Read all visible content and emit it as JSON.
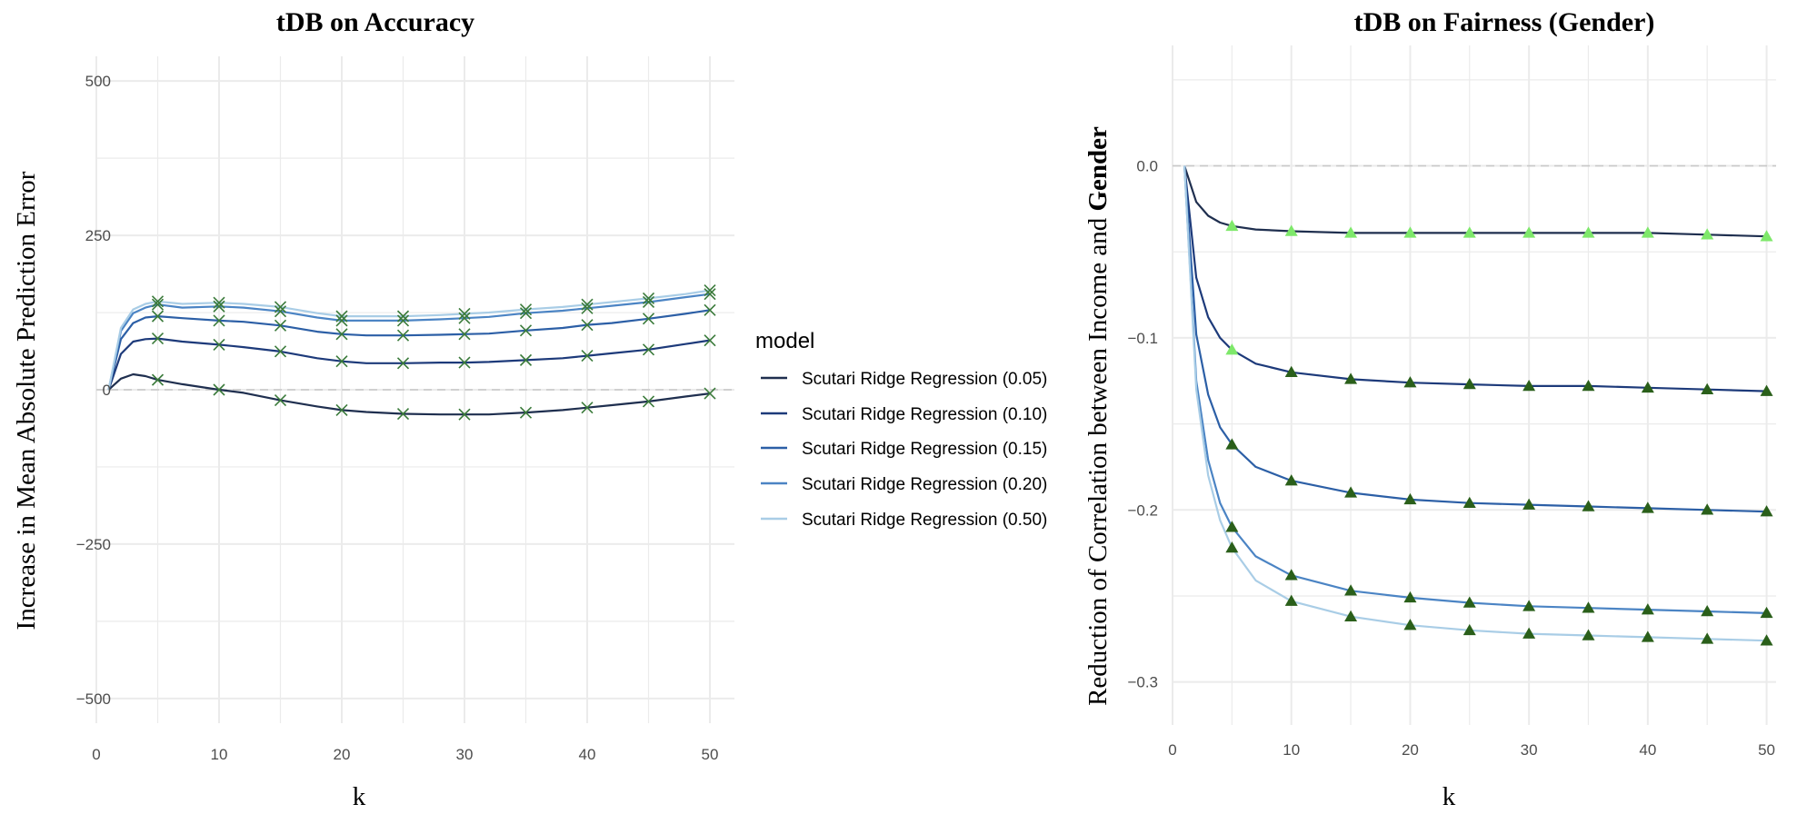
{
  "colors": {
    "series": [
      "#1f2f4f",
      "#1d3a7a",
      "#2c5fa6",
      "#4b84c4",
      "#a9cde6"
    ],
    "marker_cross": "#3a7a3a",
    "marker_triangle_dark": "#2a5f1a",
    "marker_triangle_light": "#7ee86a",
    "grid": "#ebebeb",
    "zero_line": "#c8c8c8"
  },
  "legend": {
    "title": "model",
    "items": [
      "Scutari Ridge Regression (0.05)",
      "Scutari Ridge Regression (0.10)",
      "Scutari Ridge Regression (0.15)",
      "Scutari Ridge Regression (0.20)",
      "Scutari Ridge Regression (0.50)"
    ]
  },
  "chart_data": [
    {
      "type": "line",
      "title": "tDB on Accuracy",
      "xlabel": "k",
      "ylabel": "Increase in Mean Absolute Prediction Error",
      "xlim": [
        0,
        52
      ],
      "ylim": [
        -540,
        540
      ],
      "xticks": [
        0,
        10,
        20,
        30,
        40,
        50
      ],
      "yticks": [
        -500,
        -250,
        0,
        250,
        500
      ],
      "ytick_labels": [
        "−500",
        "−250",
        "0",
        "250",
        "500"
      ],
      "reference_line_y": 0,
      "marker": "cross",
      "marker_x": [
        5,
        10,
        15,
        20,
        25,
        30,
        35,
        40,
        45,
        50
      ],
      "series": [
        {
          "name": "Scutari Ridge Regression (0.05)",
          "x": [
            1,
            2,
            3,
            4,
            5,
            7,
            10,
            12,
            15,
            18,
            20,
            22,
            25,
            28,
            30,
            32,
            35,
            38,
            40,
            42,
            45,
            48,
            50
          ],
          "values": [
            0,
            18,
            25,
            22,
            16,
            9,
            0,
            -5,
            -17,
            -27,
            -33,
            -36,
            -39,
            -40,
            -40,
            -40,
            -37,
            -33,
            -29,
            -25,
            -19,
            -11,
            -6
          ]
        },
        {
          "name": "Scutari Ridge Regression (0.10)",
          "x": [
            1,
            2,
            3,
            4,
            5,
            7,
            10,
            12,
            15,
            18,
            20,
            22,
            25,
            28,
            30,
            32,
            35,
            38,
            40,
            42,
            45,
            48,
            50
          ],
          "values": [
            0,
            58,
            78,
            82,
            83,
            78,
            73,
            69,
            62,
            51,
            46,
            43,
            43,
            44,
            44,
            45,
            48,
            51,
            55,
            59,
            65,
            74,
            80
          ]
        },
        {
          "name": "Scutari Ridge Regression (0.15)",
          "x": [
            1,
            2,
            3,
            4,
            5,
            7,
            10,
            12,
            15,
            18,
            20,
            22,
            25,
            28,
            30,
            32,
            35,
            38,
            40,
            42,
            45,
            48,
            50
          ],
          "values": [
            0,
            82,
            108,
            117,
            119,
            116,
            112,
            110,
            104,
            94,
            90,
            88,
            88,
            89,
            90,
            91,
            96,
            100,
            105,
            108,
            115,
            123,
            129
          ]
        },
        {
          "name": "Scutari Ridge Regression (0.20)",
          "x": [
            1,
            2,
            3,
            4,
            5,
            7,
            10,
            12,
            15,
            18,
            20,
            22,
            25,
            28,
            30,
            32,
            35,
            38,
            40,
            42,
            45,
            48,
            50
          ],
          "values": [
            0,
            95,
            124,
            133,
            138,
            133,
            135,
            133,
            127,
            117,
            112,
            112,
            112,
            114,
            116,
            118,
            124,
            128,
            132,
            136,
            142,
            150,
            155
          ]
        },
        {
          "name": "Scutari Ridge Regression (0.50)",
          "x": [
            1,
            2,
            3,
            4,
            5,
            7,
            10,
            12,
            15,
            18,
            20,
            22,
            25,
            28,
            30,
            32,
            35,
            38,
            40,
            42,
            45,
            48,
            50
          ],
          "values": [
            0,
            100,
            130,
            139,
            143,
            139,
            141,
            139,
            134,
            124,
            119,
            119,
            119,
            121,
            123,
            125,
            130,
            134,
            138,
            142,
            148,
            155,
            161
          ]
        }
      ]
    },
    {
      "type": "line",
      "title": "tDB on Fairness (Gender)",
      "xlabel": "k",
      "ylabel": "Reduction of Correlation between Income and ",
      "ylabel_bold": "Gender",
      "xlim": [
        0,
        50.8
      ],
      "ylim": [
        -0.325,
        0.07
      ],
      "xticks": [
        0,
        10,
        20,
        30,
        40,
        50
      ],
      "yticks": [
        0.0,
        -0.1,
        -0.2,
        -0.3
      ],
      "ytick_labels": [
        "0.0",
        "−0.1",
        "−0.2",
        "−0.3"
      ],
      "reference_line_y": 0,
      "marker": "triangle",
      "series": [
        {
          "name": "Scutari Ridge Regression (0.05)",
          "x": [
            1,
            2,
            3,
            4,
            5,
            7,
            10,
            15,
            20,
            25,
            30,
            35,
            40,
            45,
            50
          ],
          "values": [
            0,
            -0.021,
            -0.029,
            -0.033,
            -0.035,
            -0.037,
            -0.038,
            -0.039,
            -0.039,
            -0.039,
            -0.039,
            -0.039,
            -0.039,
            -0.04,
            -0.041
          ],
          "marker_x": [
            5,
            10,
            15,
            20,
            25,
            30,
            35,
            40,
            45,
            50
          ],
          "marker_values": [
            -0.035,
            -0.038,
            -0.039,
            -0.039,
            -0.039,
            -0.039,
            -0.039,
            -0.039,
            -0.04,
            -0.041
          ],
          "marker_colors": [
            "light",
            "light",
            "light",
            "light",
            "light",
            "light",
            "light",
            "light",
            "light",
            "light"
          ]
        },
        {
          "name": "Scutari Ridge Regression (0.10)",
          "x": [
            1,
            2,
            3,
            4,
            5,
            7,
            10,
            15,
            20,
            25,
            30,
            35,
            40,
            45,
            50
          ],
          "values": [
            0,
            -0.065,
            -0.088,
            -0.1,
            -0.107,
            -0.115,
            -0.12,
            -0.124,
            -0.126,
            -0.127,
            -0.128,
            -0.128,
            -0.129,
            -0.13,
            -0.131
          ],
          "marker_x": [
            5,
            10,
            15,
            20,
            25,
            30,
            35,
            40,
            45,
            50
          ],
          "marker_values": [
            -0.107,
            -0.12,
            -0.124,
            -0.126,
            -0.127,
            -0.128,
            -0.128,
            -0.129,
            -0.13,
            -0.131
          ],
          "marker_colors": [
            "light",
            "dark",
            "dark",
            "dark",
            "dark",
            "dark",
            "dark",
            "dark",
            "dark",
            "dark"
          ]
        },
        {
          "name": "Scutari Ridge Regression (0.15)",
          "x": [
            1,
            2,
            3,
            4,
            5,
            7,
            10,
            15,
            20,
            25,
            30,
            35,
            40,
            45,
            50
          ],
          "values": [
            0,
            -0.098,
            -0.133,
            -0.152,
            -0.162,
            -0.175,
            -0.183,
            -0.19,
            -0.194,
            -0.196,
            -0.197,
            -0.198,
            -0.199,
            -0.2,
            -0.201
          ],
          "marker_x": [
            5,
            10,
            15,
            20,
            25,
            30,
            35,
            40,
            45,
            50
          ],
          "marker_values": [
            -0.162,
            -0.183,
            -0.19,
            -0.194,
            -0.196,
            -0.197,
            -0.198,
            -0.199,
            -0.2,
            -0.201
          ],
          "marker_colors": [
            "dark",
            "dark",
            "dark",
            "dark",
            "dark",
            "dark",
            "dark",
            "dark",
            "dark",
            "dark"
          ]
        },
        {
          "name": "Scutari Ridge Regression (0.20)",
          "x": [
            1,
            2,
            3,
            4,
            5,
            7,
            10,
            15,
            20,
            25,
            30,
            35,
            40,
            45,
            50
          ],
          "values": [
            0,
            -0.125,
            -0.171,
            -0.196,
            -0.21,
            -0.227,
            -0.238,
            -0.247,
            -0.251,
            -0.254,
            -0.256,
            -0.257,
            -0.258,
            -0.259,
            -0.26
          ],
          "marker_x": [
            5,
            10,
            15,
            20,
            25,
            30,
            35,
            40,
            45,
            50
          ],
          "marker_values": [
            -0.21,
            -0.238,
            -0.247,
            -0.251,
            -0.254,
            -0.256,
            -0.257,
            -0.258,
            -0.259,
            -0.26
          ],
          "marker_colors": [
            "dark",
            "dark",
            "dark",
            "dark",
            "dark",
            "dark",
            "dark",
            "dark",
            "dark",
            "dark"
          ]
        },
        {
          "name": "Scutari Ridge Regression (0.50)",
          "x": [
            1,
            2,
            3,
            4,
            5,
            7,
            10,
            15,
            20,
            25,
            30,
            35,
            40,
            45,
            50
          ],
          "values": [
            0,
            -0.13,
            -0.18,
            -0.206,
            -0.222,
            -0.241,
            -0.253,
            -0.262,
            -0.267,
            -0.27,
            -0.272,
            -0.273,
            -0.274,
            -0.275,
            -0.276
          ],
          "marker_x": [
            5,
            10,
            15,
            20,
            25,
            30,
            35,
            40,
            45,
            50
          ],
          "marker_values": [
            -0.222,
            -0.253,
            -0.262,
            -0.267,
            -0.27,
            -0.272,
            -0.273,
            -0.274,
            -0.275,
            -0.276
          ],
          "marker_colors": [
            "dark",
            "dark",
            "dark",
            "dark",
            "dark",
            "dark",
            "dark",
            "dark",
            "dark",
            "dark"
          ]
        }
      ]
    }
  ]
}
